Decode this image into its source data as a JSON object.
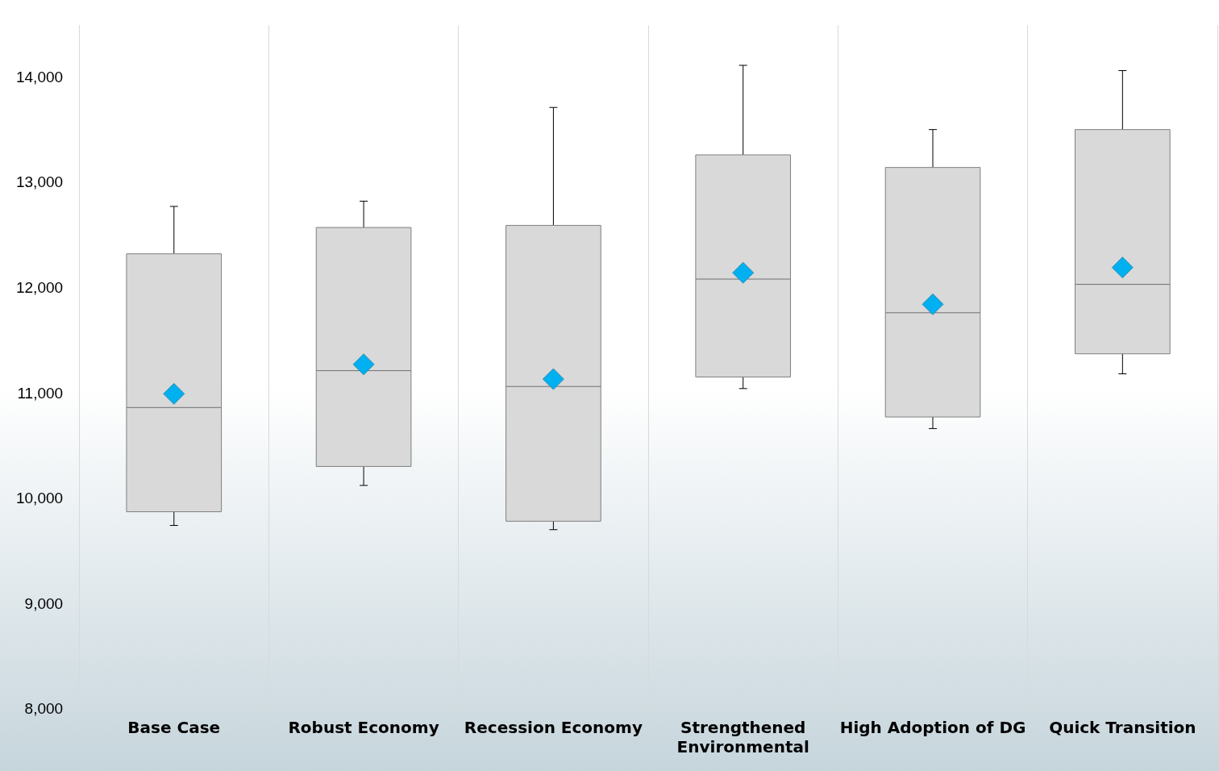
{
  "chart_data": {
    "type": "box",
    "categories": [
      "Base Case",
      "Robust Economy",
      "Recession Economy",
      "Strengthened Environmental",
      "High Adoption of DG",
      "Quick Transition"
    ],
    "series": [
      {
        "color": "#d9d9d9",
        "boxes": [
          {
            "low": 9750,
            "q1": 9880,
            "median": 10870,
            "q3": 12330,
            "high": 12780,
            "mean": 11000
          },
          {
            "low": 10130,
            "q1": 10310,
            "median": 11220,
            "q3": 12580,
            "high": 12830,
            "mean": 11280
          },
          {
            "low": 9710,
            "q1": 9790,
            "median": 11070,
            "q3": 12600,
            "high": 13720,
            "mean": 11140
          },
          {
            "low": 11050,
            "q1": 11160,
            "median": 12090,
            "q3": 13270,
            "high": 14120,
            "mean": 12150
          },
          {
            "low": 10670,
            "q1": 10780,
            "median": 11770,
            "q3": 13150,
            "high": 13510,
            "mean": 11850
          },
          {
            "low": 11190,
            "q1": 11380,
            "median": 12040,
            "q3": 13510,
            "high": 14070,
            "mean": 12200
          }
        ]
      }
    ],
    "ylim": [
      8000,
      14500
    ],
    "yticks": [
      {
        "value": 8000,
        "label": "8,000"
      },
      {
        "value": 9000,
        "label": "9,000"
      },
      {
        "value": 10000,
        "label": "10,000"
      },
      {
        "value": 11000,
        "label": "11,000"
      },
      {
        "value": 12000,
        "label": "12,000"
      },
      {
        "value": 13000,
        "label": "13,000"
      },
      {
        "value": 14000,
        "label": "14,000"
      }
    ],
    "grid": "x",
    "legend": false,
    "marker": "diamond"
  }
}
